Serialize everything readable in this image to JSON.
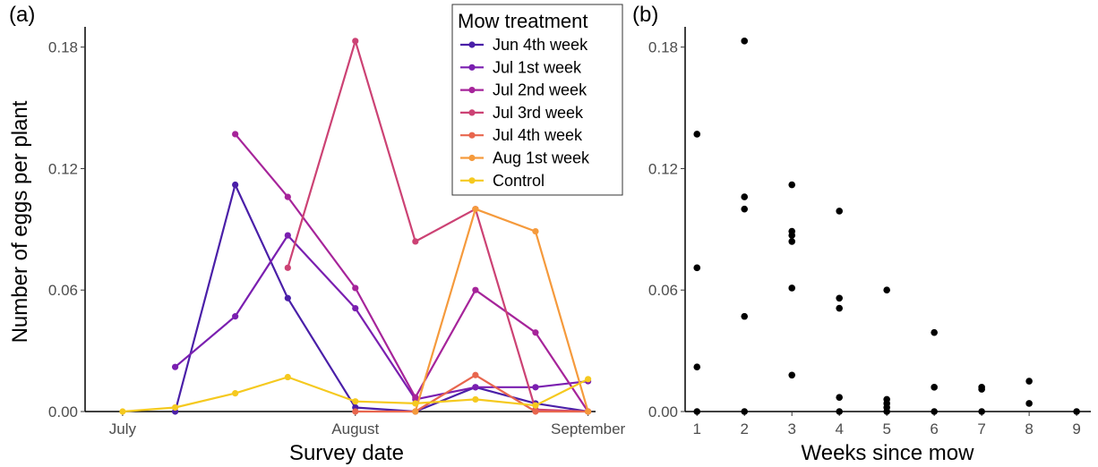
{
  "chart_data": [
    {
      "type": "line",
      "panel_label": "(a)",
      "xlabel": "Survey date",
      "ylabel": "Number of eggs per plant",
      "x_ticks": [
        "July",
        "August",
        "September"
      ],
      "y_ticks": [
        "0.00",
        "0.06",
        "0.12",
        "0.18"
      ],
      "ylim": [
        0,
        0.19
      ],
      "xlim": [
        "2021-06-26",
        "2021-09-02"
      ],
      "grid": false,
      "legend_title": "Mow treatment",
      "legend_position": "top-right",
      "series": [
        {
          "name": "Jun 4th week",
          "color": "#4a1fa8",
          "points": [
            [
              "2021-07-08",
              0.0
            ],
            [
              "2021-07-16",
              0.112
            ],
            [
              "2021-07-23",
              0.056
            ],
            [
              "2021-08-01",
              0.002
            ],
            [
              "2021-08-09",
              0.0
            ],
            [
              "2021-08-17",
              0.012
            ],
            [
              "2021-08-25",
              0.004
            ],
            [
              "2021-09-01",
              0.0
            ]
          ]
        },
        {
          "name": "Jul 1st week",
          "color": "#7a1fb0",
          "points": [
            [
              "2021-07-08",
              0.022
            ],
            [
              "2021-07-16",
              0.047
            ],
            [
              "2021-07-23",
              0.087
            ],
            [
              "2021-08-01",
              0.051
            ],
            [
              "2021-08-09",
              0.006
            ],
            [
              "2021-08-17",
              0.012
            ],
            [
              "2021-08-25",
              0.012
            ],
            [
              "2021-09-01",
              0.015
            ]
          ]
        },
        {
          "name": "Jul 2nd week",
          "color": "#a6249a",
          "points": [
            [
              "2021-07-16",
              0.137
            ],
            [
              "2021-07-23",
              0.106
            ],
            [
              "2021-08-01",
              0.061
            ],
            [
              "2021-08-09",
              0.007
            ],
            [
              "2021-08-17",
              0.06
            ],
            [
              "2021-08-25",
              0.039
            ],
            [
              "2021-09-01",
              0.0
            ]
          ]
        },
        {
          "name": "Jul 3rd week",
          "color": "#cc4274",
          "points": [
            [
              "2021-07-23",
              0.071
            ],
            [
              "2021-08-01",
              0.183
            ],
            [
              "2021-08-09",
              0.084
            ],
            [
              "2021-08-17",
              0.1
            ],
            [
              "2021-08-25",
              0.001
            ],
            [
              "2021-09-01",
              0.0
            ]
          ]
        },
        {
          "name": "Jul 4th week",
          "color": "#e8664e",
          "points": [
            [
              "2021-08-01",
              0.0
            ],
            [
              "2021-08-09",
              0.0
            ],
            [
              "2021-08-17",
              0.018
            ],
            [
              "2021-08-25",
              0.0
            ],
            [
              "2021-09-01",
              0.0
            ]
          ]
        },
        {
          "name": "Aug 1st week",
          "color": "#f59a3c",
          "points": [
            [
              "2021-08-09",
              0.0
            ],
            [
              "2021-08-17",
              0.1
            ],
            [
              "2021-08-25",
              0.089
            ],
            [
              "2021-09-01",
              0.0
            ]
          ]
        },
        {
          "name": "Control",
          "color": "#f5c91f",
          "points": [
            [
              "2021-07-01",
              0.0
            ],
            [
              "2021-07-08",
              0.002
            ],
            [
              "2021-07-16",
              0.009
            ],
            [
              "2021-07-23",
              0.017
            ],
            [
              "2021-08-01",
              0.005
            ],
            [
              "2021-08-09",
              0.004
            ],
            [
              "2021-08-17",
              0.006
            ],
            [
              "2021-08-25",
              0.003
            ],
            [
              "2021-09-01",
              0.016
            ]
          ]
        }
      ]
    },
    {
      "type": "scatter",
      "panel_label": "(b)",
      "xlabel": "Weeks since mow",
      "ylabel": "",
      "x_ticks": [
        "1",
        "2",
        "3",
        "4",
        "5",
        "6",
        "7",
        "8",
        "9"
      ],
      "y_ticks": [
        "0.00",
        "0.06",
        "0.12",
        "0.18"
      ],
      "xlim": [
        0.75,
        9.3
      ],
      "ylim": [
        0,
        0.19
      ],
      "grid": false,
      "color": "#000000",
      "points": [
        [
          1,
          0.137
        ],
        [
          1,
          0.071
        ],
        [
          1,
          0.022
        ],
        [
          1,
          0.0
        ],
        [
          2,
          0.183
        ],
        [
          2,
          0.106
        ],
        [
          2,
          0.1
        ],
        [
          2,
          0.047
        ],
        [
          2,
          0.0
        ],
        [
          3,
          0.112
        ],
        [
          3,
          0.089
        ],
        [
          3,
          0.087
        ],
        [
          3,
          0.084
        ],
        [
          3,
          0.061
        ],
        [
          3,
          0.018
        ],
        [
          4,
          0.099
        ],
        [
          4,
          0.056
        ],
        [
          4,
          0.051
        ],
        [
          4,
          0.007
        ],
        [
          4,
          0.0
        ],
        [
          5,
          0.06
        ],
        [
          5,
          0.006
        ],
        [
          5,
          0.004
        ],
        [
          5,
          0.002
        ],
        [
          5,
          0.0
        ],
        [
          6,
          0.039
        ],
        [
          6,
          0.012
        ],
        [
          6,
          0.0
        ],
        [
          7,
          0.012
        ],
        [
          7,
          0.011
        ],
        [
          7,
          0.0
        ],
        [
          8,
          0.015
        ],
        [
          8,
          0.004
        ],
        [
          9,
          0.0
        ]
      ]
    }
  ]
}
